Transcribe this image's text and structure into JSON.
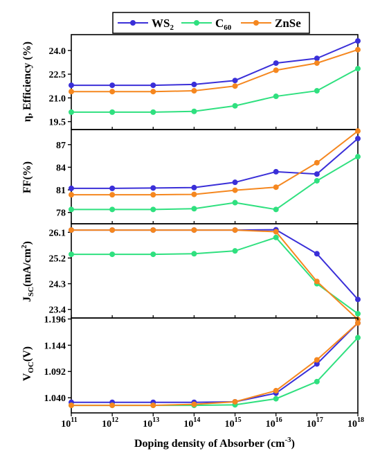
{
  "chart_data": [
    {
      "type": "line",
      "panel": "efficiency",
      "ylabel": "η, Efficiency (%)",
      "ylim": [
        19.0,
        25.0
      ],
      "yticks": [
        "19.5",
        "21.0",
        "22.5",
        "24.0"
      ],
      "ytick_values": [
        19.5,
        21.0,
        22.5,
        24.0
      ],
      "x": [
        11,
        12,
        13,
        14,
        15,
        16,
        17,
        18
      ],
      "series": [
        {
          "name": "WS2",
          "values": [
            21.8,
            21.8,
            21.8,
            21.85,
            22.1,
            23.2,
            23.5,
            24.6
          ]
        },
        {
          "name": "C60",
          "values": [
            20.1,
            20.1,
            20.1,
            20.15,
            20.5,
            21.1,
            21.45,
            22.85
          ]
        },
        {
          "name": "ZnSe",
          "values": [
            21.4,
            21.4,
            21.4,
            21.45,
            21.75,
            22.75,
            23.2,
            24.05
          ]
        }
      ]
    },
    {
      "type": "line",
      "panel": "fill-factor",
      "ylabel": "FF(%)",
      "ylim": [
        76.5,
        89.0
      ],
      "yticks": [
        "78",
        "81",
        "84",
        "87"
      ],
      "ytick_values": [
        78,
        81,
        84,
        87
      ],
      "x": [
        11,
        12,
        13,
        14,
        15,
        16,
        17,
        18
      ],
      "series": [
        {
          "name": "WS2",
          "values": [
            81.2,
            81.2,
            81.25,
            81.3,
            82.0,
            83.4,
            83.1,
            87.8
          ]
        },
        {
          "name": "C60",
          "values": [
            78.4,
            78.4,
            78.4,
            78.5,
            79.3,
            78.4,
            82.2,
            85.4
          ]
        },
        {
          "name": "ZnSe",
          "values": [
            80.35,
            80.35,
            80.35,
            80.4,
            80.95,
            81.35,
            84.6,
            88.8
          ]
        }
      ]
    },
    {
      "type": "line",
      "panel": "current-density",
      "ylabel": "JSC(mA/cm2)",
      "ylim": [
        23.1,
        26.4
      ],
      "yticks": [
        "23.4",
        "24.3",
        "25.2",
        "26.1"
      ],
      "ytick_values": [
        23.4,
        24.3,
        25.2,
        26.1
      ],
      "x": [
        11,
        12,
        13,
        14,
        15,
        16,
        17,
        18
      ],
      "series": [
        {
          "name": "WS2",
          "values": [
            26.18,
            26.18,
            26.18,
            26.18,
            26.18,
            26.19,
            25.35,
            23.75
          ]
        },
        {
          "name": "C60",
          "values": [
            25.33,
            25.33,
            25.33,
            25.35,
            25.45,
            25.92,
            24.3,
            23.25
          ]
        },
        {
          "name": "ZnSe",
          "values": [
            26.18,
            26.18,
            26.18,
            26.18,
            26.18,
            26.12,
            24.38,
            23.05
          ]
        }
      ]
    },
    {
      "type": "line",
      "panel": "open-circuit-voltage",
      "ylabel": "VOC(V)",
      "ylim": [
        1.01,
        1.198
      ],
      "yticks": [
        "1.040",
        "1.092",
        "1.144",
        "1.196"
      ],
      "ytick_values": [
        1.04,
        1.092,
        1.144,
        1.196
      ],
      "x": [
        11,
        12,
        13,
        14,
        15,
        16,
        17,
        18
      ],
      "series": [
        {
          "name": "WS2",
          "values": [
            1.031,
            1.031,
            1.031,
            1.031,
            1.032,
            1.049,
            1.107,
            1.188
          ]
        },
        {
          "name": "C60",
          "values": [
            1.025,
            1.025,
            1.025,
            1.025,
            1.026,
            1.038,
            1.072,
            1.159
          ]
        },
        {
          "name": "ZnSe",
          "values": [
            1.025,
            1.025,
            1.025,
            1.027,
            1.032,
            1.054,
            1.115,
            1.188
          ]
        }
      ]
    }
  ],
  "xaxis": {
    "label": "Doping density of Absorber (cm-3)",
    "label_main": "Doping density of Absorber (cm",
    "label_sup": "-3",
    "label_close": ")",
    "tick_base": "10",
    "tick_exponents": [
      "11",
      "12",
      "13",
      "14",
      "15",
      "16",
      "17",
      "18"
    ]
  },
  "legend": {
    "placement": "top-center",
    "entries": [
      {
        "label": "WS",
        "sub": "2"
      },
      {
        "label": "C",
        "sub": "60"
      },
      {
        "label": "ZnSe",
        "sub": ""
      }
    ]
  },
  "ylabels_rich": {
    "efficiency": "η, Efficiency (%)",
    "fill_factor": "FF(%)",
    "jsc_main": "J",
    "jsc_sub": "SC",
    "jsc_rest": "(mA/cm",
    "jsc_sup": "2",
    "jsc_close": ")",
    "voc_main": "V",
    "voc_sub": "OC",
    "voc_rest": "(V)"
  },
  "colors": {
    "WS2": "#3a2fd8",
    "C60": "#2fe07f",
    "ZnSe": "#f5871f",
    "axis": "#000000"
  }
}
